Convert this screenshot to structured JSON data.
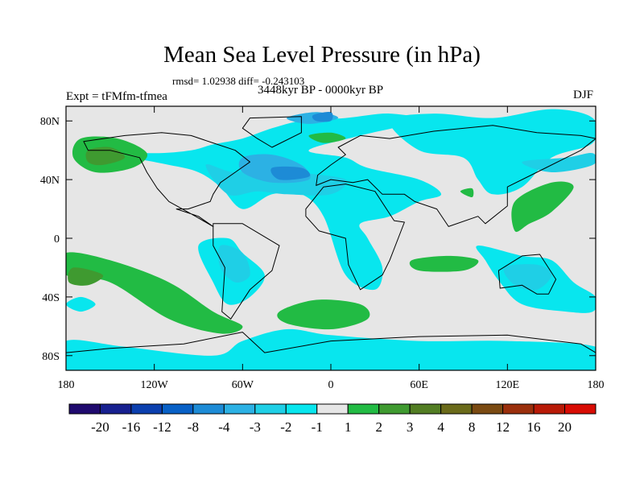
{
  "chart_data": {
    "type": "heatmap",
    "title": "Mean Sea Level Pressure (in hPa)",
    "stats_text": "rmsd= 1.02938 diff= -0.243103",
    "left_label": "Expt = tFMfm-tfmea",
    "center_label": "3448kyr BP - 0000kyr BP",
    "right_label": "DJF",
    "xlim": [
      -180,
      180
    ],
    "ylim": [
      -90,
      90
    ],
    "x_ticks": [
      {
        "value": -180,
        "label": "180"
      },
      {
        "value": -120,
        "label": "120W"
      },
      {
        "value": -60,
        "label": "60W"
      },
      {
        "value": 0,
        "label": "0"
      },
      {
        "value": 60,
        "label": "60E"
      },
      {
        "value": 120,
        "label": "120E"
      },
      {
        "value": 180,
        "label": "180"
      }
    ],
    "y_ticks": [
      {
        "value": 80,
        "label": "80N"
      },
      {
        "value": 40,
        "label": "40N"
      },
      {
        "value": 0,
        "label": "0"
      },
      {
        "value": -40,
        "label": "40S"
      },
      {
        "value": -80,
        "label": "80S"
      }
    ],
    "colorbar": {
      "colors": [
        "#1f0a6e",
        "#17208f",
        "#0b3fae",
        "#0860c6",
        "#1d8bd6",
        "#2cb1e4",
        "#1fcfe6",
        "#08e6ee",
        "#e6e6e6",
        "#22bb44",
        "#3f9a30",
        "#527d23",
        "#6a6a1a",
        "#7a4a12",
        "#9a2f0c",
        "#b81a07",
        "#d80c04"
      ],
      "labels": [
        "-20",
        "-16",
        "-12",
        "-8",
        "-4",
        "-3",
        "-2",
        "-1",
        "1",
        "2",
        "3",
        "4",
        "8",
        "12",
        "16",
        "20"
      ]
    },
    "regions": [
      {
        "level": "-1",
        "color": "#08e6ee",
        "points": [
          [
            -172,
            65
          ],
          [
            -150,
            60
          ],
          [
            -120,
            58
          ],
          [
            -95,
            60
          ],
          [
            -80,
            64
          ],
          [
            -60,
            68
          ],
          [
            -40,
            75
          ],
          [
            -20,
            80
          ],
          [
            10,
            82
          ],
          [
            40,
            85
          ],
          [
            60,
            80
          ],
          [
            20,
            70
          ],
          [
            -15,
            60
          ],
          [
            10,
            55
          ],
          [
            25,
            48
          ],
          [
            60,
            40
          ],
          [
            75,
            30
          ],
          [
            60,
            25
          ],
          [
            40,
            15
          ],
          [
            20,
            10
          ],
          [
            25,
            0
          ],
          [
            35,
            -20
          ],
          [
            30,
            -35
          ],
          [
            10,
            -25
          ],
          [
            -5,
            15
          ],
          [
            -20,
            30
          ],
          [
            -40,
            30
          ],
          [
            -60,
            20
          ],
          [
            -75,
            35
          ],
          [
            -90,
            45
          ],
          [
            -110,
            50
          ],
          [
            -140,
            55
          ],
          [
            -172,
            55
          ]
        ]
      },
      {
        "level": "-1",
        "color": "#08e6ee",
        "points": [
          [
            40,
            80
          ],
          [
            70,
            85
          ],
          [
            110,
            82
          ],
          [
            150,
            88
          ],
          [
            178,
            82
          ],
          [
            178,
            65
          ],
          [
            150,
            55
          ],
          [
            130,
            35
          ],
          [
            110,
            30
          ],
          [
            100,
            40
          ],
          [
            90,
            55
          ],
          [
            60,
            60
          ]
        ]
      },
      {
        "level": "-1",
        "color": "#08e6ee",
        "points": [
          [
            -90,
            -5
          ],
          [
            -70,
            0
          ],
          [
            -60,
            -10
          ],
          [
            -45,
            -25
          ],
          [
            -55,
            -40
          ],
          [
            -70,
            -45
          ],
          [
            -80,
            -30
          ]
        ]
      },
      {
        "level": "-1",
        "color": "#08e6ee",
        "points": [
          [
            -170,
            -40
          ],
          [
            -160,
            -45
          ],
          [
            -170,
            -50
          ],
          [
            -180,
            -45
          ]
        ]
      },
      {
        "level": "-1",
        "color": "#08e6ee",
        "points": [
          [
            100,
            -5
          ],
          [
            130,
            -12
          ],
          [
            150,
            -15
          ],
          [
            165,
            -30
          ],
          [
            180,
            -40
          ],
          [
            178,
            -50
          ],
          [
            160,
            -50
          ],
          [
            130,
            -45
          ],
          [
            115,
            -30
          ],
          [
            105,
            -15
          ]
        ]
      },
      {
        "level": "-1",
        "color": "#08e6ee",
        "points": [
          [
            -180,
            -70
          ],
          [
            -140,
            -74
          ],
          [
            -80,
            -80
          ],
          [
            -60,
            -70
          ],
          [
            -30,
            -62
          ],
          [
            0,
            -66
          ],
          [
            60,
            -70
          ],
          [
            120,
            -70
          ],
          [
            180,
            -74
          ],
          [
            180,
            -90
          ],
          [
            -180,
            -90
          ]
        ]
      },
      {
        "level": "-2",
        "color": "#1fcfe6",
        "points": [
          [
            -85,
            50
          ],
          [
            -65,
            45
          ],
          [
            -40,
            50
          ],
          [
            -20,
            45
          ],
          [
            10,
            40
          ],
          [
            0,
            30
          ],
          [
            -30,
            30
          ],
          [
            -50,
            32
          ],
          [
            -70,
            30
          ]
        ]
      },
      {
        "level": "-2",
        "color": "#1fcfe6",
        "points": [
          [
            -75,
            -5
          ],
          [
            -60,
            -10
          ],
          [
            -55,
            -25
          ],
          [
            -65,
            -30
          ],
          [
            -75,
            -20
          ]
        ]
      },
      {
        "level": "-2",
        "color": "#1fcfe6",
        "points": [
          [
            118,
            -20
          ],
          [
            140,
            -18
          ],
          [
            150,
            -25
          ],
          [
            140,
            -35
          ],
          [
            125,
            -32
          ]
        ]
      },
      {
        "level": "-2",
        "color": "#1fcfe6",
        "points": [
          [
            130,
            52
          ],
          [
            160,
            55
          ],
          [
            178,
            58
          ],
          [
            178,
            50
          ],
          [
            150,
            45
          ]
        ]
      },
      {
        "level": "-3",
        "color": "#2cb1e4",
        "points": [
          [
            -60,
            55
          ],
          [
            -40,
            57
          ],
          [
            -20,
            50
          ],
          [
            -15,
            40
          ],
          [
            -40,
            38
          ],
          [
            -60,
            45
          ]
        ]
      },
      {
        "level": "-3",
        "color": "#2cb1e4",
        "points": [
          [
            -30,
            82
          ],
          [
            -10,
            86
          ],
          [
            5,
            82
          ],
          [
            -15,
            78
          ]
        ]
      },
      {
        "level": "-4",
        "color": "#1d8bd6",
        "points": [
          [
            -40,
            48
          ],
          [
            -20,
            48
          ],
          [
            -15,
            42
          ],
          [
            -35,
            40
          ]
        ]
      },
      {
        "level": "-4",
        "color": "#1d8bd6",
        "points": [
          [
            -12,
            84
          ],
          [
            0,
            86
          ],
          [
            0,
            80
          ],
          [
            -10,
            80
          ]
        ]
      },
      {
        "level": "2",
        "color": "#22bb44",
        "points": [
          [
            -170,
            68
          ],
          [
            -145,
            68
          ],
          [
            -125,
            58
          ],
          [
            -135,
            48
          ],
          [
            -160,
            45
          ],
          [
            -175,
            55
          ]
        ]
      },
      {
        "level": "2",
        "color": "#22bb44",
        "points": [
          [
            -180,
            -10
          ],
          [
            -150,
            -15
          ],
          [
            -110,
            -30
          ],
          [
            -80,
            -50
          ],
          [
            -60,
            -60
          ],
          [
            -75,
            -65
          ],
          [
            -110,
            -55
          ],
          [
            -150,
            -30
          ],
          [
            -180,
            -25
          ]
        ]
      },
      {
        "level": "2",
        "color": "#22bb44",
        "points": [
          [
            -35,
            -50
          ],
          [
            -10,
            -42
          ],
          [
            20,
            -45
          ],
          [
            25,
            -55
          ],
          [
            0,
            -62
          ],
          [
            -30,
            -58
          ]
        ]
      },
      {
        "level": "2",
        "color": "#22bb44",
        "points": [
          [
            55,
            -15
          ],
          [
            80,
            -12
          ],
          [
            100,
            -15
          ],
          [
            90,
            -22
          ],
          [
            60,
            -22
          ]
        ]
      },
      {
        "level": "2",
        "color": "#22bb44",
        "points": [
          [
            125,
            25
          ],
          [
            150,
            38
          ],
          [
            165,
            35
          ],
          [
            150,
            18
          ],
          [
            135,
            10
          ],
          [
            125,
            5
          ]
        ]
      },
      {
        "level": "2",
        "color": "#22bb44",
        "points": [
          [
            -15,
            70
          ],
          [
            0,
            72
          ],
          [
            10,
            68
          ],
          [
            -5,
            65
          ]
        ]
      },
      {
        "level": "2",
        "color": "#22bb44",
        "points": [
          [
            88,
            32
          ],
          [
            96,
            34
          ],
          [
            96,
            28
          ]
        ]
      },
      {
        "level": "3",
        "color": "#3f9a30",
        "points": [
          [
            -165,
            60
          ],
          [
            -150,
            62
          ],
          [
            -140,
            55
          ],
          [
            -155,
            50
          ],
          [
            -165,
            52
          ]
        ]
      },
      {
        "level": "3",
        "color": "#3f9a30",
        "points": [
          [
            -175,
            -20
          ],
          [
            -155,
            -25
          ],
          [
            -165,
            -32
          ],
          [
            -178,
            -30
          ]
        ]
      }
    ],
    "land_outlines": [
      {
        "name": "north-america",
        "points": [
          [
            -168,
            66
          ],
          [
            -140,
            70
          ],
          [
            -115,
            72
          ],
          [
            -95,
            70
          ],
          [
            -80,
            65
          ],
          [
            -65,
            60
          ],
          [
            -55,
            52
          ],
          [
            -65,
            45
          ],
          [
            -75,
            38
          ],
          [
            -80,
            30
          ],
          [
            -82,
            25
          ],
          [
            -97,
            20
          ],
          [
            -105,
            20
          ],
          [
            -90,
            15
          ],
          [
            -80,
            8
          ],
          [
            -92,
            15
          ],
          [
            -110,
            25
          ],
          [
            -118,
            34
          ],
          [
            -125,
            45
          ],
          [
            -130,
            55
          ],
          [
            -150,
            60
          ],
          [
            -165,
            60
          ],
          [
            -168,
            66
          ]
        ]
      },
      {
        "name": "greenland",
        "points": [
          [
            -55,
            82
          ],
          [
            -20,
            83
          ],
          [
            -20,
            72
          ],
          [
            -40,
            62
          ],
          [
            -50,
            68
          ],
          [
            -60,
            75
          ]
        ]
      },
      {
        "name": "south-america",
        "points": [
          [
            -80,
            10
          ],
          [
            -60,
            10
          ],
          [
            -35,
            -5
          ],
          [
            -40,
            -22
          ],
          [
            -55,
            -35
          ],
          [
            -68,
            -55
          ],
          [
            -74,
            -50
          ],
          [
            -72,
            -20
          ],
          [
            -80,
            -5
          ]
        ]
      },
      {
        "name": "africa",
        "points": [
          [
            -17,
            20
          ],
          [
            -5,
            35
          ],
          [
            10,
            37
          ],
          [
            30,
            32
          ],
          [
            43,
            12
          ],
          [
            50,
            11
          ],
          [
            40,
            -15
          ],
          [
            35,
            -25
          ],
          [
            20,
            -35
          ],
          [
            12,
            -18
          ],
          [
            10,
            0
          ],
          [
            -8,
            5
          ],
          [
            -17,
            15
          ]
        ]
      },
      {
        "name": "eurasia",
        "points": [
          [
            -10,
            36
          ],
          [
            -9,
            43
          ],
          [
            0,
            50
          ],
          [
            10,
            57
          ],
          [
            5,
            62
          ],
          [
            20,
            70
          ],
          [
            40,
            68
          ],
          [
            70,
            73
          ],
          [
            110,
            77
          ],
          [
            140,
            72
          ],
          [
            170,
            70
          ],
          [
            180,
            68
          ],
          [
            170,
            60
          ],
          [
            160,
            55
          ],
          [
            140,
            45
          ],
          [
            120,
            35
          ],
          [
            120,
            22
          ],
          [
            105,
            10
          ],
          [
            100,
            15
          ],
          [
            80,
            8
          ],
          [
            72,
            20
          ],
          [
            57,
            25
          ],
          [
            50,
            30
          ],
          [
            35,
            30
          ],
          [
            25,
            40
          ],
          [
            15,
            38
          ],
          [
            0,
            40
          ]
        ]
      },
      {
        "name": "australia",
        "points": [
          [
            114,
            -22
          ],
          [
            130,
            -12
          ],
          [
            142,
            -11
          ],
          [
            153,
            -28
          ],
          [
            148,
            -38
          ],
          [
            140,
            -38
          ],
          [
            130,
            -32
          ],
          [
            115,
            -34
          ]
        ]
      },
      {
        "name": "antarctica",
        "points": [
          [
            -180,
            -78
          ],
          [
            -150,
            -75
          ],
          [
            -100,
            -72
          ],
          [
            -60,
            -64
          ],
          [
            -45,
            -78
          ],
          [
            0,
            -70
          ],
          [
            60,
            -67
          ],
          [
            120,
            -66
          ],
          [
            170,
            -72
          ],
          [
            180,
            -78
          ]
        ]
      }
    ]
  }
}
